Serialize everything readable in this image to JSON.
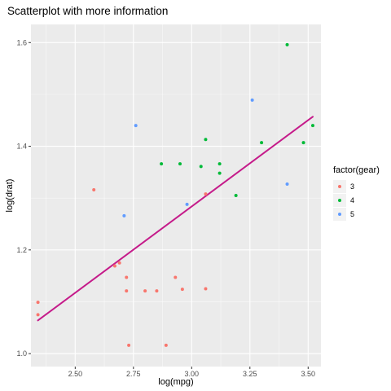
{
  "chart_data": {
    "type": "scatter",
    "title": "Scatterplot with more information",
    "xlabel": "log(mpg)",
    "ylabel": "log(drat)",
    "xlim": [
      2.31,
      3.555
    ],
    "ylim": [
      0.975,
      1.635
    ],
    "x_ticks": [
      2.5,
      2.75,
      3.0,
      3.25,
      3.5
    ],
    "x_tick_labels": [
      "2.50",
      "2.75",
      "3.00",
      "3.25",
      "3.50"
    ],
    "y_ticks": [
      1.0,
      1.2,
      1.4,
      1.6
    ],
    "y_tick_labels": [
      "1.0",
      "1.2",
      "1.4",
      "1.6"
    ],
    "grid": true,
    "legend": {
      "title": "factor(gear)",
      "position": "right"
    },
    "colors": {
      "3": "#F8766D",
      "4": "#00BA38",
      "5": "#619CFF",
      "fit": "#C51B8A",
      "panel": "#EBEBEB",
      "grid": "#FFFFFF"
    },
    "series": [
      {
        "name": "3",
        "points": [
          {
            "x": 3.06,
            "y": 1.125
          },
          {
            "x": 2.93,
            "y": 1.147
          },
          {
            "x": 2.72,
            "y": 1.147
          },
          {
            "x": 2.96,
            "y": 1.124
          },
          {
            "x": 2.72,
            "y": 1.121
          },
          {
            "x": 2.8,
            "y": 1.121
          },
          {
            "x": 2.85,
            "y": 1.121
          },
          {
            "x": 2.34,
            "y": 1.099
          },
          {
            "x": 2.34,
            "y": 1.075
          },
          {
            "x": 2.69,
            "y": 1.175
          },
          {
            "x": 2.67,
            "y": 1.169
          },
          {
            "x": 2.73,
            "y": 1.016
          },
          {
            "x": 2.89,
            "y": 1.016
          },
          {
            "x": 2.58,
            "y": 1.316
          },
          {
            "x": 3.06,
            "y": 1.308
          }
        ]
      },
      {
        "name": "4",
        "points": [
          {
            "x": 3.04,
            "y": 1.361
          },
          {
            "x": 3.12,
            "y": 1.348
          },
          {
            "x": 3.19,
            "y": 1.305
          },
          {
            "x": 3.12,
            "y": 1.366
          },
          {
            "x": 2.87,
            "y": 1.366
          },
          {
            "x": 2.95,
            "y": 1.366
          },
          {
            "x": 3.06,
            "y": 1.413
          },
          {
            "x": 3.3,
            "y": 1.407
          },
          {
            "x": 3.48,
            "y": 1.407
          },
          {
            "x": 3.52,
            "y": 1.44
          },
          {
            "x": 3.41,
            "y": 1.596
          }
        ]
      },
      {
        "name": "5",
        "points": [
          {
            "x": 3.26,
            "y": 1.489
          },
          {
            "x": 3.41,
            "y": 1.327
          },
          {
            "x": 2.76,
            "y": 1.44
          },
          {
            "x": 2.98,
            "y": 1.288
          },
          {
            "x": 2.71,
            "y": 1.266
          }
        ]
      }
    ],
    "fit_line": {
      "x": [
        2.34,
        3.52
      ],
      "y": [
        1.064,
        1.457
      ]
    }
  }
}
